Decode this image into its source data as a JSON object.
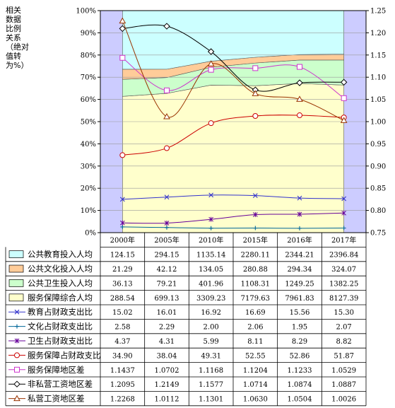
{
  "chart_data": {
    "type": "combo",
    "title": "",
    "ylabel_left": "相关\n数据\n比例\n关系\n（绝对\n值转\n为%）",
    "categories": [
      "2000年",
      "2005年",
      "2010年",
      "2015年",
      "2016年",
      "2017年"
    ],
    "left_axis": {
      "min": 0,
      "max": 100,
      "ticks": [
        "0%",
        "10%",
        "20%",
        "30%",
        "40%",
        "50%",
        "60%",
        "70%",
        "80%",
        "90%",
        "100%"
      ]
    },
    "right_axis": {
      "min": 0.75,
      "max": 1.25,
      "ticks": [
        "0.75",
        "0.80",
        "0.85",
        "0.90",
        "0.95",
        "1.00",
        "1.05",
        "1.10",
        "1.15",
        "1.20",
        "1.25"
      ]
    },
    "stacked_area_series": [
      {
        "name": "公共教育投入人均",
        "color": "#ccffff",
        "values": [
          "124.15",
          "294.15",
          "1135.14",
          "2280.11",
          "2344.21",
          "2396.84"
        ]
      },
      {
        "name": "公共文化投入人均",
        "color": "#ffcc99",
        "values": [
          "21.29",
          "42.12",
          "134.05",
          "280.88",
          "294.34",
          "324.07"
        ]
      },
      {
        "name": "公共卫生投入人均",
        "color": "#ccffcc",
        "values": [
          "36.13",
          "79.21",
          "401.96",
          "1108.31",
          "1249.25",
          "1382.25"
        ]
      },
      {
        "name": "服务保障综合人均",
        "color": "#ffffcc",
        "values": [
          "288.54",
          "699.13",
          "3309.23",
          "7179.63",
          "7961.83",
          "8127.39"
        ]
      }
    ],
    "line_series_left": [
      {
        "name": "教育占财政支出比",
        "color": "#3333cc",
        "marker": "x",
        "values": [
          "15.02",
          "16.01",
          "16.92",
          "16.69",
          "15.56",
          "15.30"
        ]
      },
      {
        "name": "文化占财政支出比",
        "color": "#006699",
        "marker": "plus",
        "values": [
          "2.58",
          "2.29",
          "2.00",
          "2.06",
          "1.95",
          "2.07"
        ]
      },
      {
        "name": "卫生占财政支出比",
        "color": "#660099",
        "marker": "star",
        "values": [
          "4.37",
          "4.31",
          "5.99",
          "8.11",
          "8.29",
          "8.82"
        ]
      },
      {
        "name": "服务保障占财政支比",
        "color": "#cc0000",
        "marker": "circle",
        "values": [
          "34.90",
          "38.04",
          "49.31",
          "52.55",
          "52.86",
          "51.87"
        ]
      }
    ],
    "line_series_right": [
      {
        "name": "服务保障地区差",
        "color": "#cc33cc",
        "marker": "square",
        "values": [
          "1.1437",
          "1.0702",
          "1.1168",
          "1.1204",
          "1.1233",
          "1.0529"
        ]
      },
      {
        "name": "非私营工资地区差",
        "color": "#000000",
        "marker": "diamond",
        "values": [
          "1.2095",
          "1.2149",
          "1.1577",
          "1.0714",
          "1.0874",
          "1.0887"
        ]
      },
      {
        "name": "私营工资地区差",
        "color": "#993300",
        "marker": "triangle",
        "values": [
          "1.2268",
          "1.0112",
          "1.1301",
          "1.0630",
          "1.0504",
          "1.0026"
        ]
      }
    ],
    "colors": {
      "side_band": "#ccccff",
      "plot_border": "#000000",
      "grid": "#808080"
    }
  }
}
